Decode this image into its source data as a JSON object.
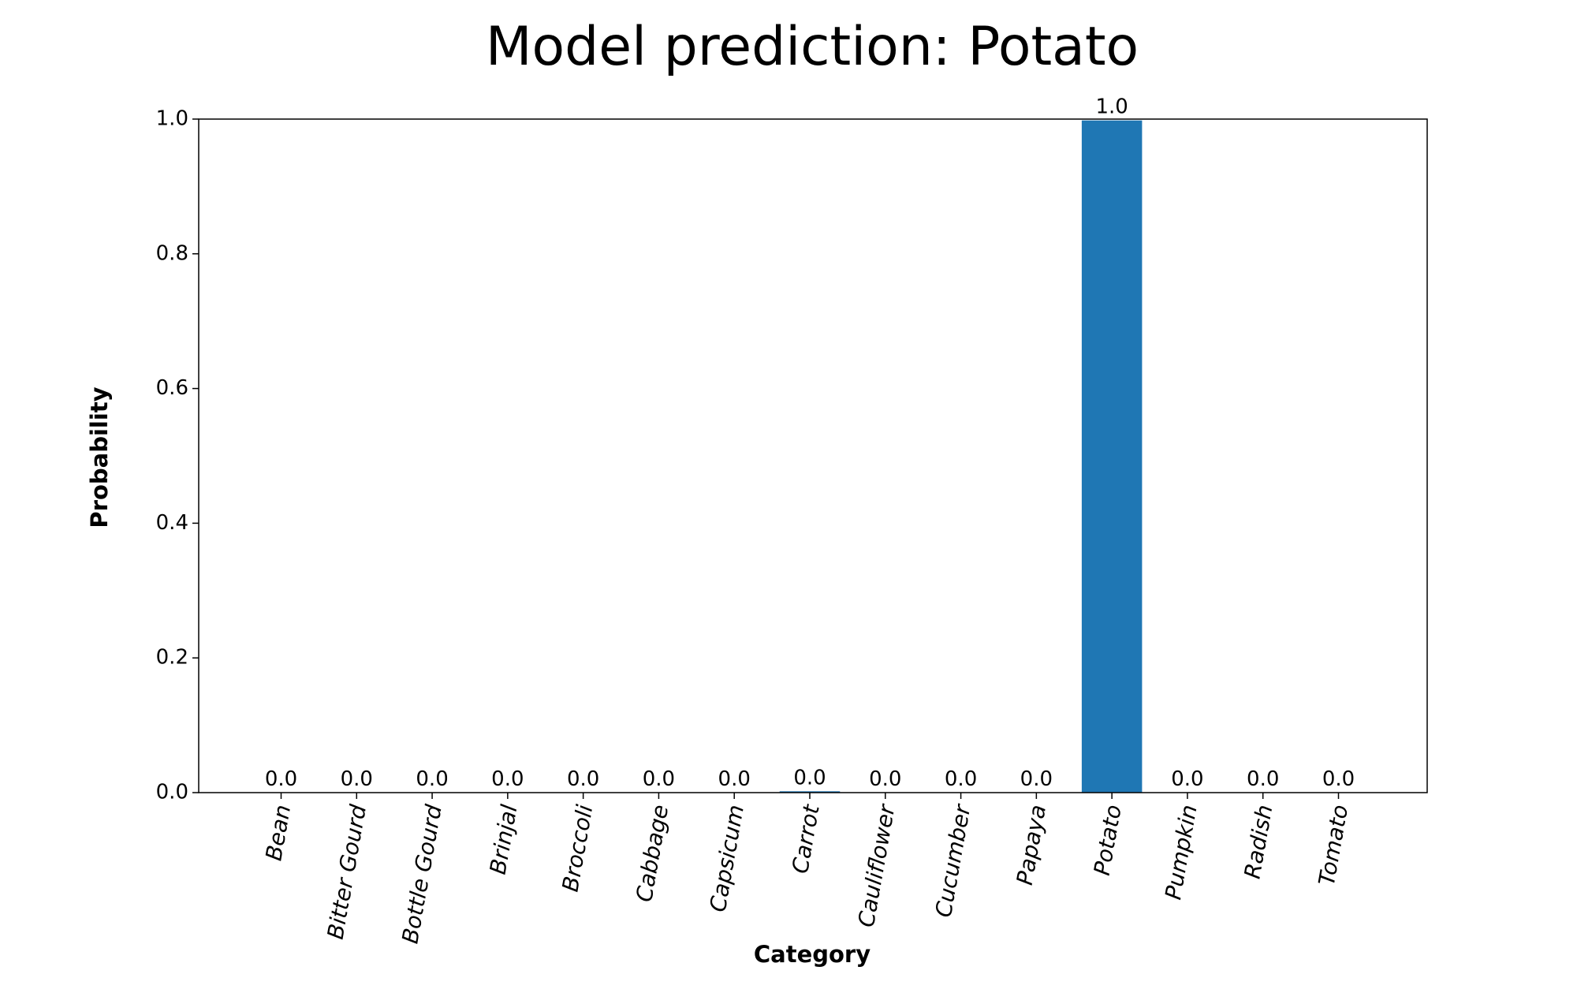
{
  "chart_data": {
    "type": "bar",
    "title": "Model prediction: Potato",
    "xlabel": "Category",
    "ylabel": "Probability",
    "categories": [
      "Bean",
      "Bitter Gourd",
      "Bottle Gourd",
      "Brinjal",
      "Broccoli",
      "Cabbage",
      "Capsicum",
      "Carrot",
      "Cauliflower",
      "Cucumber",
      "Papaya",
      "Potato",
      "Pumpkin",
      "Radish",
      "Tomato"
    ],
    "values": [
      0.0,
      0.0,
      0.0,
      0.0,
      0.0,
      0.0,
      0.0,
      0.002,
      0.0,
      0.0,
      0.0,
      0.998,
      0.0,
      0.0,
      0.0
    ],
    "data_labels": [
      "0.0",
      "0.0",
      "0.0",
      "0.0",
      "0.0",
      "0.0",
      "0.0",
      "0.0",
      "0.0",
      "0.0",
      "0.0",
      "1.0",
      "0.0",
      "0.0",
      "0.0"
    ],
    "ylim": [
      0,
      1.0
    ],
    "yticks": [
      0.0,
      0.2,
      0.4,
      0.6,
      0.8,
      1.0
    ],
    "ytick_labels": [
      "0.0",
      "0.2",
      "0.4",
      "0.6",
      "0.8",
      "1.0"
    ],
    "bar_color": "#1f77b4",
    "grid": false,
    "legend": "none"
  }
}
